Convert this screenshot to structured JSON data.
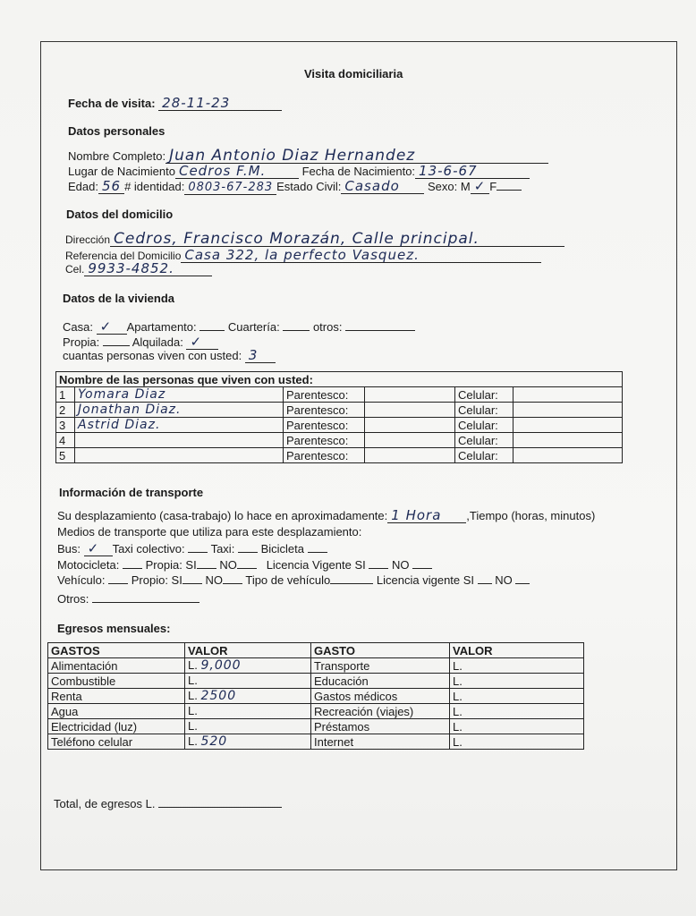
{
  "title": "Visita domiciliaria",
  "visit_date": {
    "label": "Fecha de visita:",
    "value": "28-11-23"
  },
  "personal": {
    "heading": "Datos personales",
    "name_label": "Nombre Completo:",
    "name": "Juan Antonio Diaz Hernandez",
    "birthplace_label": "Lugar de Nacimiento",
    "birthplace": "Cedros F.M.",
    "birthdate_label": "Fecha de Nacimiento:",
    "birthdate": "13-6-67",
    "age_label": "Edad:",
    "age": "56",
    "id_label": "# identidad:",
    "id": "0803-67-283",
    "civil_label": "Estado Civil:",
    "civil": "Casado",
    "sex_label": "Sexo: M",
    "sex_m": "✓",
    "sex_f_label": "F"
  },
  "home": {
    "heading": "Datos del domicilio",
    "address_label": "Dirección",
    "address": "Cedros, Francisco Morazán, Calle principal.",
    "reference_label": "Referencia del Domicilio",
    "reference": "Casa 322, la perfecto Vasquez.",
    "phone_label": "Cel.",
    "phone": "9933-4852."
  },
  "housing": {
    "heading": "Datos de la vivienda",
    "casa_label": "Casa:",
    "casa": "✓",
    "apartamento_label": "Apartamento:",
    "cuarteria_label": "Cuartería:",
    "otros_label": "otros:",
    "propia_label": "Propia:",
    "alquilada_label": "Alquilada:",
    "alquilada": "✓",
    "people_count_label": "cuantas personas viven con usted:",
    "people_count": "3"
  },
  "people_table": {
    "header": "Nombre de las personas que viven con usted:",
    "parentesco_label": "Parentesco:",
    "celular_label": "Celular:",
    "rows": [
      {
        "n": "1",
        "name": "Yomara Diaz"
      },
      {
        "n": "2",
        "name": "Jonathan Diaz."
      },
      {
        "n": "3",
        "name": "Astrid Diaz."
      },
      {
        "n": "4",
        "name": ""
      },
      {
        "n": "5",
        "name": ""
      }
    ]
  },
  "transport": {
    "heading": "Información de transporte",
    "commute_label": "Su desplazamiento (casa-trabajo) lo hace en aproximadamente:",
    "commute": "1 Hora",
    "commute_suffix": ",Tiempo (horas, minutos)",
    "means_label": "Medios de transporte que utiliza para este desplazamiento:",
    "bus_label": "Bus:",
    "bus": "✓",
    "taxi_col_label": "Taxi colectivo:",
    "taxi_label": "Taxi:",
    "bici_label": "Bicicleta",
    "moto_line": {
      "moto": "Motocicleta:",
      "propia": "Propia: SI",
      "no": "NO",
      "licencia": "Licencia Vigente SI",
      "no2": "NO"
    },
    "veh_line": {
      "veh": "Vehículo:",
      "propio": "Propio: SI",
      "no": "NO",
      "tipo": "Tipo de vehículo",
      "licencia": "Licencia vigente SI",
      "no2": "NO"
    },
    "otros_label": "Otros:"
  },
  "expenses": {
    "heading": "Egresos mensuales:",
    "headers": [
      "GASTOS",
      "VALOR",
      "GASTO",
      "VALOR"
    ],
    "rows": [
      {
        "left": "Alimentación",
        "lval": "9,000",
        "right": "Transporte"
      },
      {
        "left": "Combustible",
        "lval": "",
        "right": "Educación"
      },
      {
        "left": "Renta",
        "lval": "2500",
        "right": "Gastos médicos"
      },
      {
        "left": "Agua",
        "lval": "",
        "right": "Recreación (viajes)"
      },
      {
        "left": "Electricidad (luz)",
        "lval": "",
        "right": "Préstamos"
      },
      {
        "left": "Teléfono celular",
        "lval": "520",
        "right": "Internet"
      }
    ],
    "currency": "L.",
    "total_label": "Total, de egresos L."
  }
}
